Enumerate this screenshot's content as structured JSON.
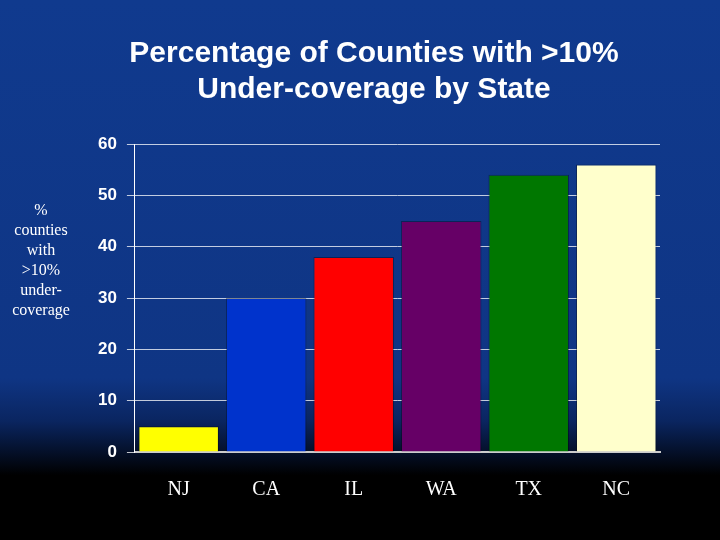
{
  "chart_data": {
    "type": "bar",
    "title": [
      "Percentage of Counties with >10%",
      "Under-coverage by State"
    ],
    "ylabel": [
      "%",
      "counties",
      "with",
      ">10%",
      "under-",
      "coverage"
    ],
    "categories": [
      "NJ",
      "CA",
      "IL",
      "WA",
      "TX",
      "NC"
    ],
    "values": [
      5,
      30,
      38,
      45,
      54,
      56
    ],
    "colors": [
      "#ffff00",
      "#0033cc",
      "#ff0000",
      "#660066",
      "#007700",
      "#ffffcc"
    ],
    "ylim": [
      0,
      60
    ],
    "yticks": [
      0,
      10,
      20,
      30,
      40,
      50,
      60
    ],
    "grid": true
  }
}
